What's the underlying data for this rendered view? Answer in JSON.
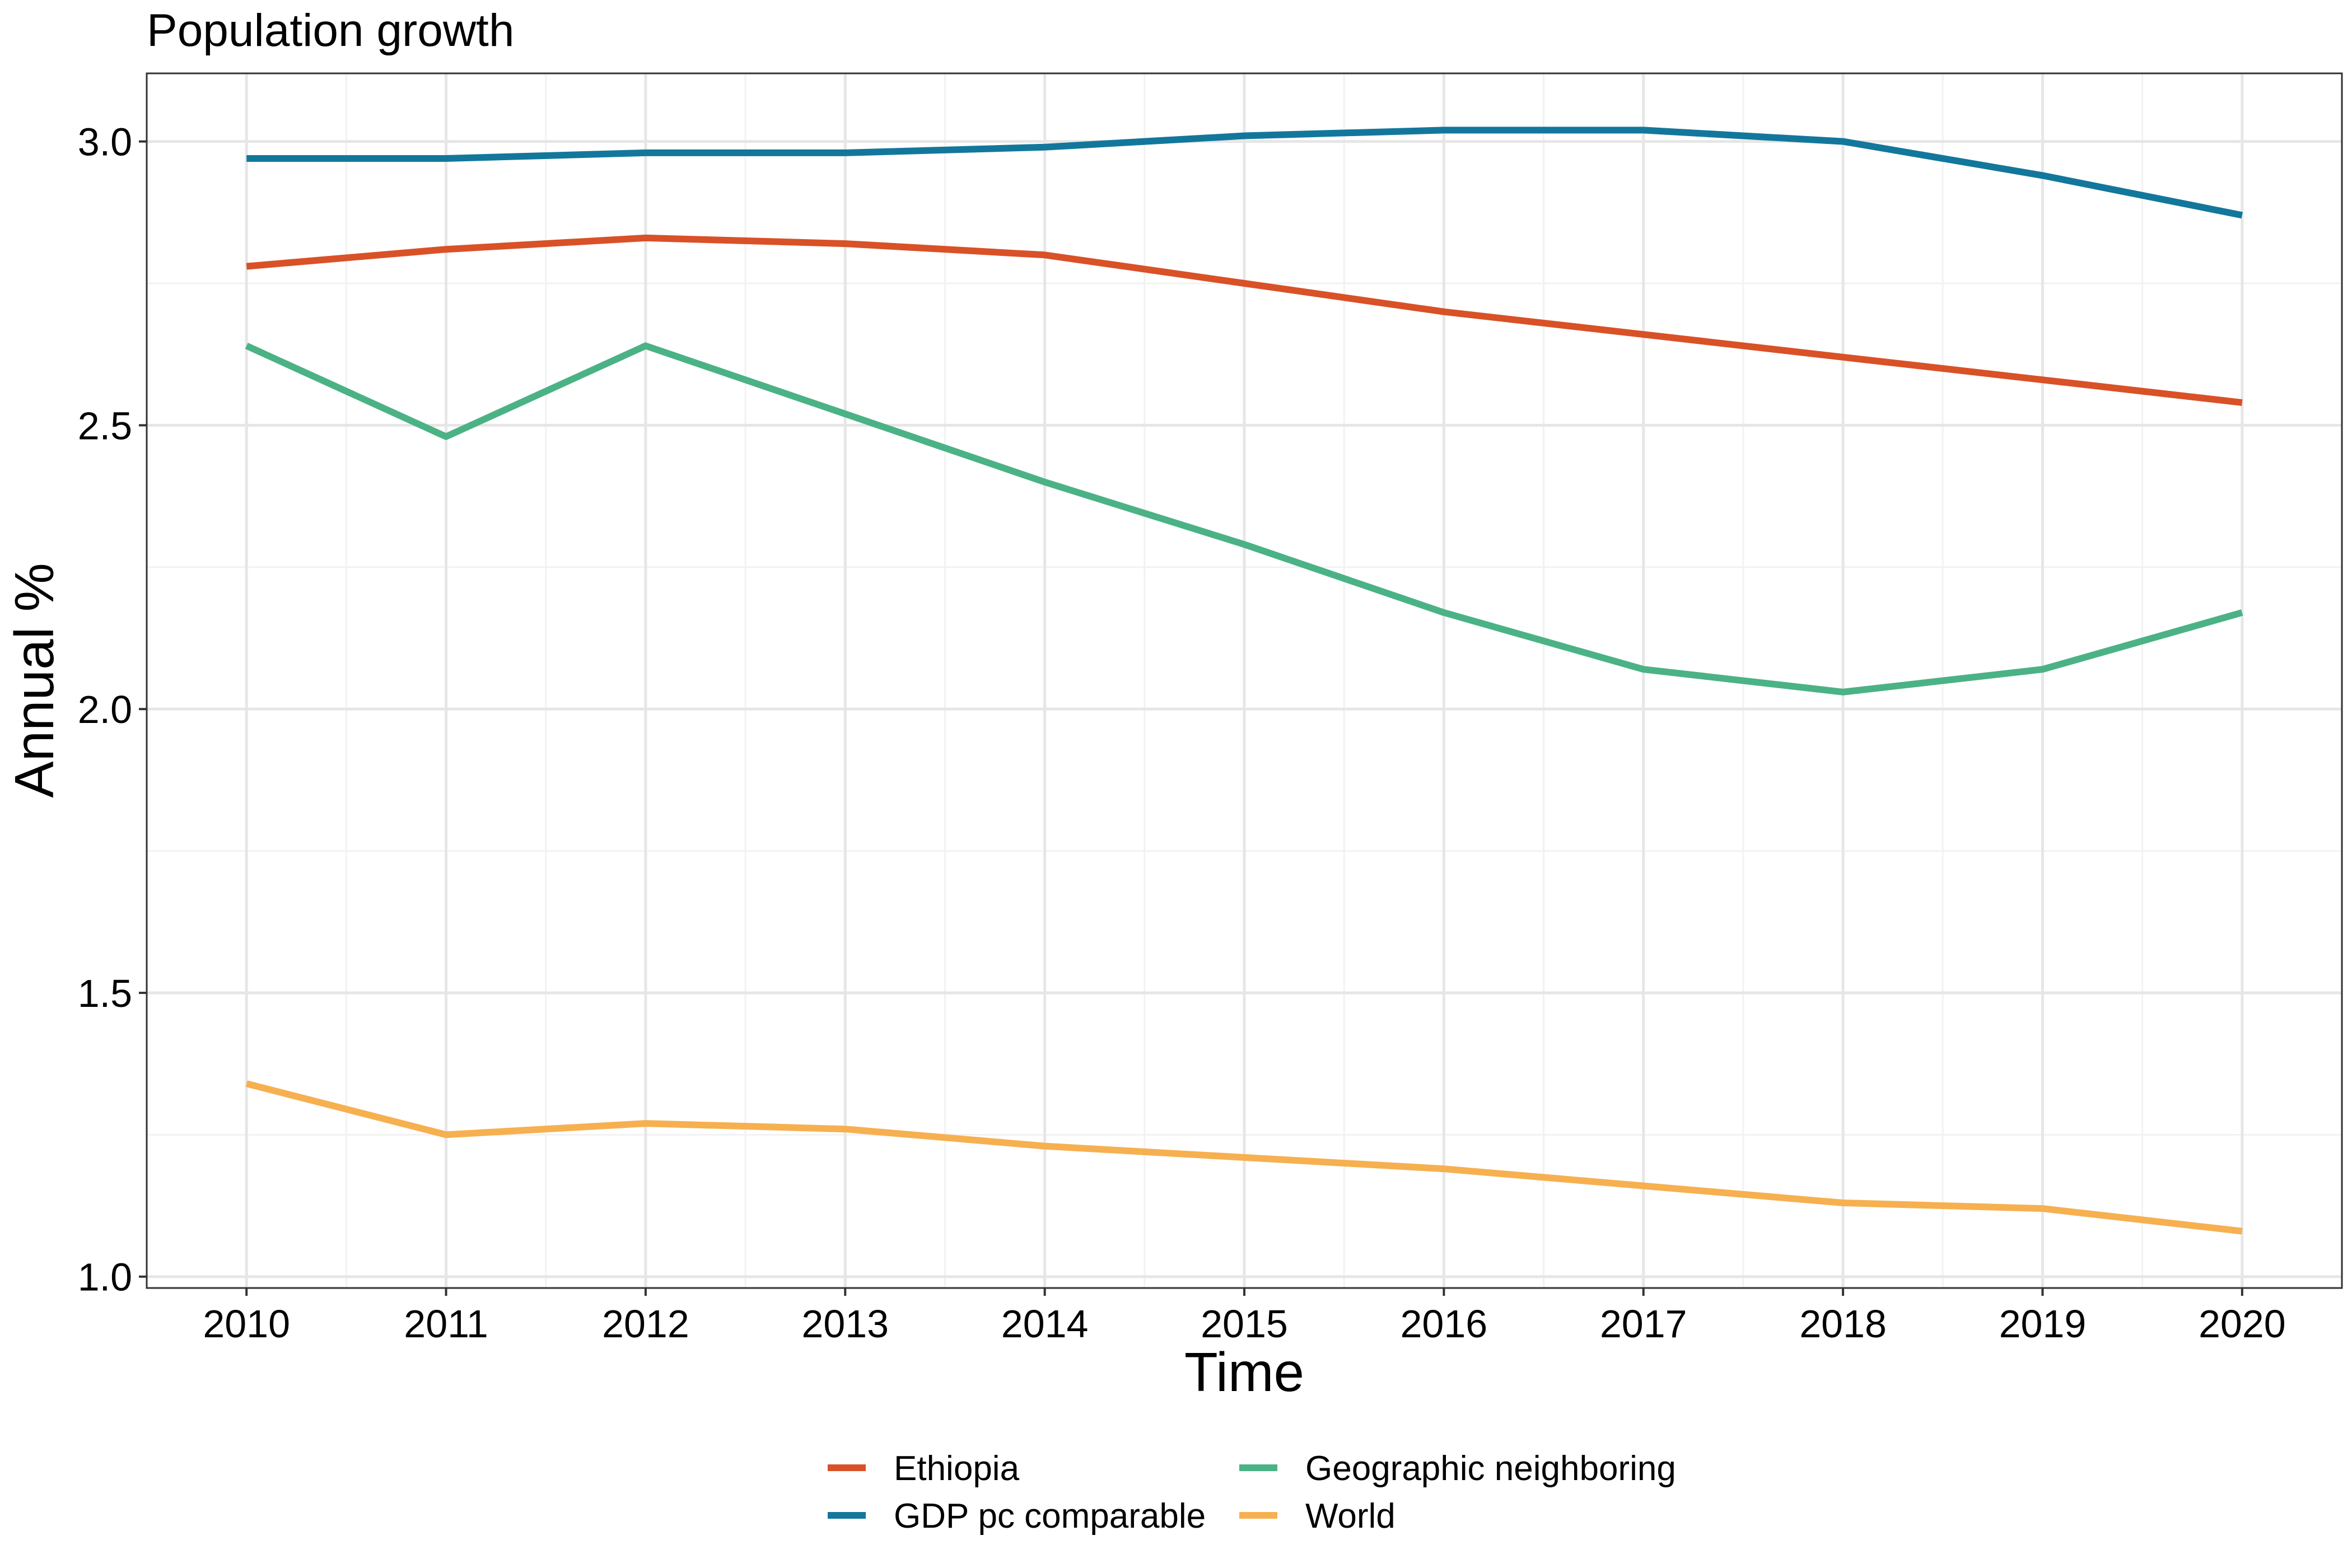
{
  "chart_data": {
    "type": "line",
    "title": "Population growth",
    "xlabel": "Time",
    "ylabel": "Annual %",
    "x": [
      2010,
      2011,
      2012,
      2013,
      2014,
      2015,
      2016,
      2017,
      2018,
      2019,
      2020
    ],
    "x_tick_labels": [
      "2010",
      "2011",
      "2012",
      "2013",
      "2014",
      "2015",
      "2016",
      "2017",
      "2018",
      "2019",
      "2020"
    ],
    "xlim": [
      2009.5,
      2020.5
    ],
    "y_ticks": [
      1.0,
      1.5,
      2.0,
      2.5,
      3.0
    ],
    "y_tick_labels": [
      "1.0",
      "1.5",
      "2.0",
      "2.5",
      "3.0"
    ],
    "ylim": [
      0.98,
      3.12
    ],
    "grid": true,
    "legend_position": "bottom",
    "series": [
      {
        "name": "Ethiopia",
        "color": "#d95127",
        "values": [
          2.78,
          2.81,
          2.83,
          2.82,
          2.8,
          2.75,
          2.7,
          2.66,
          2.62,
          2.58,
          2.54
        ]
      },
      {
        "name": "GDP pc comparable",
        "color": "#13779c",
        "values": [
          2.97,
          2.97,
          2.98,
          2.98,
          2.99,
          3.01,
          3.02,
          3.02,
          3.0,
          2.94,
          2.87
        ]
      },
      {
        "name": "Geographic neighboring",
        "color": "#4bb286",
        "values": [
          2.64,
          2.48,
          2.64,
          2.52,
          2.4,
          2.29,
          2.17,
          2.07,
          2.03,
          2.07,
          2.17
        ]
      },
      {
        "name": "World",
        "color": "#f6b050",
        "values": [
          1.34,
          1.25,
          1.27,
          1.26,
          1.23,
          1.21,
          1.19,
          1.16,
          1.13,
          1.12,
          1.08
        ]
      }
    ]
  }
}
